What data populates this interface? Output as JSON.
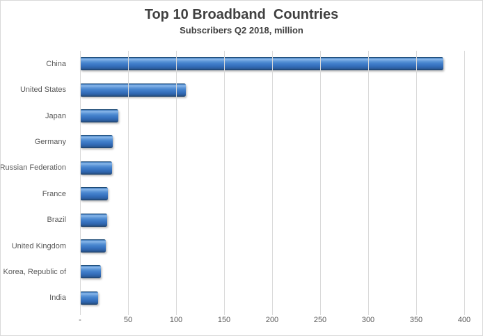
{
  "chart": {
    "title": "Top 10 Broadband  Countries",
    "subtitle": "Subscribers Q2 2018, million"
  },
  "chart_data": {
    "type": "bar",
    "orientation": "horizontal",
    "title": "Top 10 Broadband Countries",
    "subtitle": "Subscribers Q2 2018, million",
    "categories": [
      "China",
      "United States",
      "Japan",
      "Germany",
      "Russian Federation",
      "France",
      "Brazil",
      "United Kingdom",
      "Korea, Republic of",
      "India"
    ],
    "values": [
      378,
      110,
      40,
      34,
      33,
      29,
      28,
      27,
      22,
      19
    ],
    "xlabel": "",
    "ylabel": "",
    "xlim": [
      0,
      400
    ],
    "xticks": [
      0,
      50,
      100,
      150,
      200,
      250,
      300,
      350,
      400
    ],
    "xtick_labels": [
      "-",
      "50",
      "100",
      "150",
      "200",
      "250",
      "300",
      "350",
      "400"
    ],
    "grid": "vertical",
    "legend": "none",
    "colors": {
      "bar_fill": "#3a76c3",
      "bar_highlight": "#85b3e7",
      "bar_edge_dark": "#17395e",
      "gridline": "#d9d9d9",
      "tick_label": "#595959",
      "title_text": "#404040",
      "chart_border": "#d9d9d9",
      "background": "#ffffff"
    }
  }
}
